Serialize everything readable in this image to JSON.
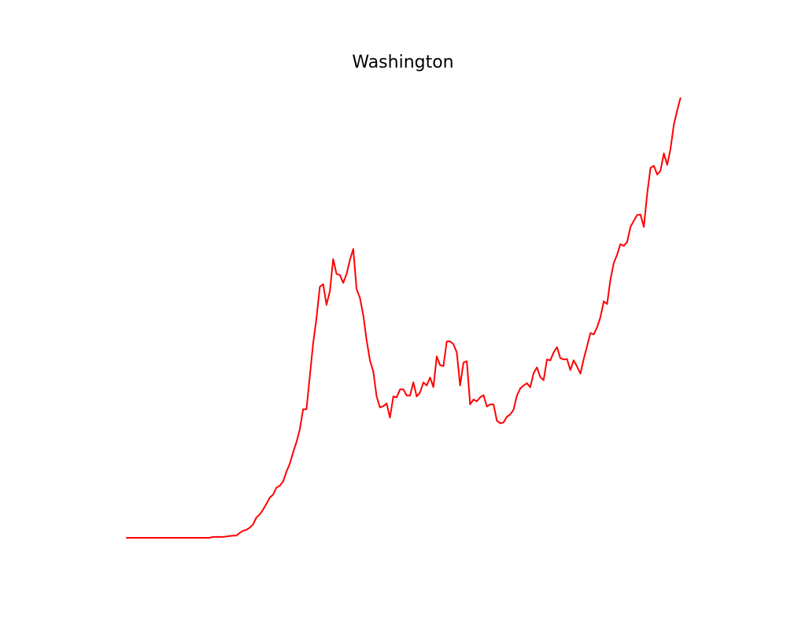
{
  "chart_data": {
    "type": "line",
    "title": "Washington",
    "color": "#ff0000",
    "ylim": [
      -5,
      105
    ],
    "values": [
      0,
      0,
      0,
      0,
      0,
      0,
      0,
      0,
      0,
      0,
      0,
      0,
      0,
      0,
      0,
      0,
      0,
      0,
      0,
      0,
      0,
      0,
      0,
      0,
      0,
      0,
      0.2,
      0.2,
      0.2,
      0.2,
      0.3,
      0.4,
      0.5,
      0.5,
      1.1,
      1.6,
      1.8,
      2.3,
      3.0,
      4.6,
      5.3,
      6.4,
      7.7,
      9.1,
      9.8,
      11.4,
      11.8,
      12.8,
      15.0,
      16.8,
      19.4,
      21.7,
      24.6,
      29.2,
      29.2,
      36.7,
      44.2,
      49.9,
      57.0,
      57.6,
      52.9,
      56.0,
      63.3,
      59.9,
      59.7,
      57.9,
      59.9,
      63.1,
      65.6,
      56.5,
      54.5,
      50.6,
      44.9,
      40.3,
      37.8,
      32.1,
      29.6,
      29.9,
      30.5,
      27.3,
      32.1,
      31.9,
      33.7,
      33.7,
      32.3,
      32.3,
      35.3,
      32.1,
      33.0,
      35.3,
      34.6,
      36.4,
      34.2,
      41.2,
      39.2,
      39.0,
      44.6,
      44.6,
      44.0,
      42.1,
      34.6,
      39.8,
      40.1,
      30.3,
      31.4,
      31.0,
      31.9,
      32.4,
      29.8,
      30.3,
      30.3,
      26.6,
      26.0,
      26.2,
      27.5,
      28.0,
      29.1,
      32.3,
      33.9,
      34.6,
      35.1,
      34.2,
      37.4,
      38.7,
      36.5,
      35.8,
      40.5,
      40.3,
      42.1,
      43.3,
      40.8,
      40.5,
      40.6,
      38.1,
      40.3,
      38.9,
      37.3,
      40.6,
      43.5,
      46.5,
      46.2,
      47.8,
      50.1,
      53.7,
      53.1,
      58.6,
      62.4,
      64.3,
      66.7,
      66.3,
      67.2,
      70.6,
      72.0,
      73.3,
      73.4,
      70.6,
      78.1,
      84.0,
      84.5,
      82.5,
      83.4,
      87.3,
      84.7,
      88.4,
      93.9,
      97.1,
      100.0
    ]
  }
}
